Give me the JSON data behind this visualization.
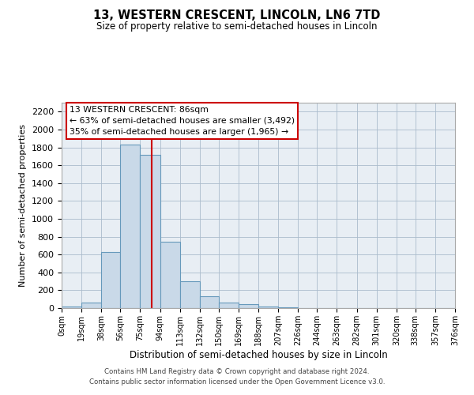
{
  "title": "13, WESTERN CRESCENT, LINCOLN, LN6 7TD",
  "subtitle": "Size of property relative to semi-detached houses in Lincoln",
  "xlabel": "Distribution of semi-detached houses by size in Lincoln",
  "ylabel": "Number of semi-detached properties",
  "bin_edges": [
    0,
    19,
    38,
    56,
    75,
    94,
    113,
    132,
    150,
    169,
    188,
    207,
    226,
    244,
    263,
    282,
    301,
    320,
    338,
    357,
    376
  ],
  "bin_counts": [
    20,
    60,
    630,
    1830,
    1720,
    740,
    300,
    130,
    65,
    40,
    15,
    5,
    2,
    1,
    0,
    0,
    0,
    0,
    0,
    0
  ],
  "bar_facecolor": "#c9d9e8",
  "bar_edgecolor": "#6699bb",
  "property_line_x": 86,
  "property_line_color": "#cc0000",
  "ylim": [
    0,
    2300
  ],
  "yticks": [
    0,
    200,
    400,
    600,
    800,
    1000,
    1200,
    1400,
    1600,
    1800,
    2000,
    2200
  ],
  "xtick_labels": [
    "0sqm",
    "19sqm",
    "38sqm",
    "56sqm",
    "75sqm",
    "94sqm",
    "113sqm",
    "132sqm",
    "150sqm",
    "169sqm",
    "188sqm",
    "207sqm",
    "226sqm",
    "244sqm",
    "263sqm",
    "282sqm",
    "301sqm",
    "320sqm",
    "338sqm",
    "357sqm",
    "376sqm"
  ],
  "annotation_box_text": "13 WESTERN CRESCENT: 86sqm\n← 63% of semi-detached houses are smaller (3,492)\n35% of semi-detached houses are larger (1,965) →",
  "footer_text": "Contains HM Land Registry data © Crown copyright and database right 2024.\nContains public sector information licensed under the Open Government Licence v3.0.",
  "grid_color": "#aabbcc",
  "background_color": "#ffffff",
  "plot_bg_color": "#e8eef4"
}
